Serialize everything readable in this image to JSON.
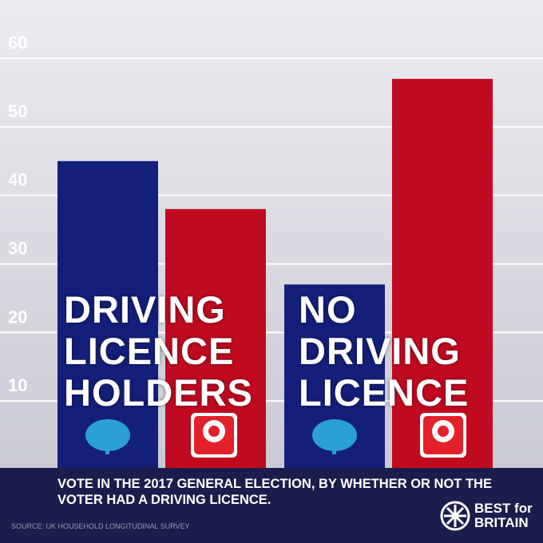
{
  "chart_data": {
    "type": "bar",
    "categories": [
      "DRIVING LICENCE HOLDERS",
      "NO DRIVING LICENCE"
    ],
    "series": [
      {
        "color": "#131f7a",
        "values": [
          45,
          27
        ]
      },
      {
        "color": "#c00a20",
        "values": [
          38,
          57
        ]
      }
    ],
    "ylim": [
      0,
      60
    ],
    "yticks": [
      10,
      20,
      30,
      40,
      50,
      60
    ],
    "grid": true,
    "subtitle": "VOTE IN THE 2017 GENERAL ELECTION, BY WHETHER OR NOT THE VOTER HAD A DRIVING LICENCE.",
    "source": "SOURCE: UK HOUSEHOLD LONGITUDINAL SURVEY",
    "brand": {
      "line1": "BEST for",
      "line2": "BRITAIN"
    }
  }
}
